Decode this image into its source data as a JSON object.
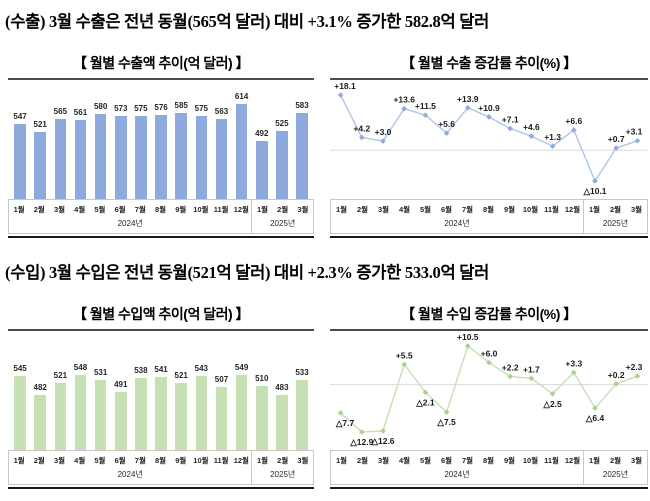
{
  "headers": {
    "export": "(수출) 3월 수출은 전년 동월(565억 달러) 대비 +3.1% 증가한 582.8억 달러",
    "import": "(수입) 3월 수입은 전년 동월(521억 달러) 대비 +2.3% 증가한 533.0억 달러"
  },
  "axis": {
    "groups": [
      {
        "year": "2024년",
        "months": [
          "1월",
          "2월",
          "3월",
          "4월",
          "5월",
          "6월",
          "7월",
          "8월",
          "9월",
          "10월",
          "11월",
          "12월"
        ]
      },
      {
        "year": "2025년",
        "months": [
          "1월",
          "2월",
          "3월"
        ]
      }
    ]
  },
  "colors": {
    "export_bar": "#8EA9DB",
    "import_bar": "#C6E0B4",
    "export_line": "#AEC6E8",
    "export_marker": "#8FAADC",
    "import_line": "#C6E0B4",
    "import_marker": "#A9D18E",
    "zero_line": "#D9D9D9",
    "label_text": "#1a1a1a"
  },
  "chart_data": [
    {
      "id": "export-amount",
      "type": "bar",
      "title": "【 월별 수출액 추이(억 달러) 】",
      "categories": [
        "2024-01",
        "2024-02",
        "2024-03",
        "2024-04",
        "2024-05",
        "2024-06",
        "2024-07",
        "2024-08",
        "2024-09",
        "2024-10",
        "2024-11",
        "2024-12",
        "2025-01",
        "2025-02",
        "2025-03"
      ],
      "values": [
        547,
        521,
        565,
        561,
        580,
        573,
        575,
        576,
        585,
        575,
        563,
        614,
        492,
        525,
        583
      ],
      "labels": [
        "547",
        "521",
        "565",
        "561",
        "580",
        "573",
        "575",
        "576",
        "585",
        "575",
        "563",
        "614",
        "492",
        "525",
        "583"
      ],
      "ylim": [
        300,
        690
      ],
      "color_key": "export_bar"
    },
    {
      "id": "export-growth",
      "type": "line",
      "title": "【 월별 수출 증감률 추이(%) 】",
      "categories": [
        "2024-01",
        "2024-02",
        "2024-03",
        "2024-04",
        "2024-05",
        "2024-06",
        "2024-07",
        "2024-08",
        "2024-09",
        "2024-10",
        "2024-11",
        "2024-12",
        "2025-01",
        "2025-02",
        "2025-03"
      ],
      "values": [
        18.1,
        4.2,
        3.0,
        13.6,
        11.5,
        5.6,
        13.9,
        10.9,
        7.1,
        4.6,
        1.3,
        6.6,
        -10.1,
        0.7,
        3.1
      ],
      "labels": [
        "+18.1",
        "+4.2",
        "+3.0",
        "+13.6",
        "+11.5",
        "+5.6",
        "+13.9",
        "+10.9",
        "+7.1",
        "+4.6",
        "+1.3",
        "+6.6",
        "△10.1",
        "+0.7",
        "+3.1"
      ],
      "zero_line": true,
      "line_key": "export_line",
      "marker_key": "export_marker"
    },
    {
      "id": "import-amount",
      "type": "bar",
      "title": "【 월별 수입액 추이(억 달러) 】",
      "categories": [
        "2024-01",
        "2024-02",
        "2024-03",
        "2024-04",
        "2024-05",
        "2024-06",
        "2024-07",
        "2024-08",
        "2024-09",
        "2024-10",
        "2024-11",
        "2024-12",
        "2025-01",
        "2025-02",
        "2025-03"
      ],
      "values": [
        545,
        482,
        521,
        548,
        531,
        491,
        538,
        541,
        521,
        543,
        507,
        549,
        510,
        483,
        533
      ],
      "labels": [
        "545",
        "482",
        "521",
        "548",
        "531",
        "491",
        "538",
        "541",
        "521",
        "543",
        "507",
        "549",
        "510",
        "483",
        "533"
      ],
      "ylim": [
        300,
        690
      ],
      "color_key": "import_bar"
    },
    {
      "id": "import-growth",
      "type": "line",
      "title": "【 월별 수입 증감률 추이(%) 】",
      "categories": [
        "2024-01",
        "2024-02",
        "2024-03",
        "2024-04",
        "2024-05",
        "2024-06",
        "2024-07",
        "2024-08",
        "2024-09",
        "2024-10",
        "2024-11",
        "2024-12",
        "2025-01",
        "2025-02",
        "2025-03"
      ],
      "values": [
        -7.7,
        -12.9,
        -12.6,
        5.5,
        -2.1,
        -7.5,
        10.5,
        6.0,
        2.2,
        1.7,
        -2.5,
        3.3,
        -6.4,
        0.2,
        2.3
      ],
      "labels": [
        "△7.7",
        "△12.9",
        "△12.6",
        "+5.5",
        "△2.1",
        "△7.5",
        "+10.5",
        "+6.0",
        "+2.2",
        "+1.7",
        "△2.5",
        "+3.3",
        "△6.4",
        "+0.2",
        "+2.3"
      ],
      "zero_line": true,
      "line_key": "import_line",
      "marker_key": "import_marker"
    }
  ]
}
